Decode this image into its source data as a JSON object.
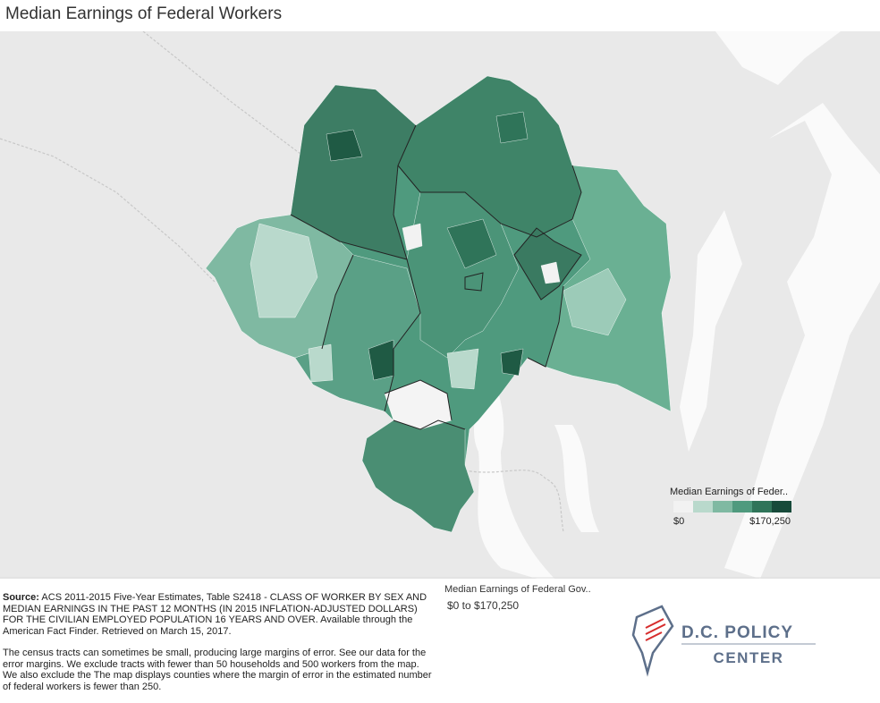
{
  "title": "Median Earnings of Federal Workers",
  "map_legend": {
    "title": "Median Earnings of Feder..",
    "min_label": "$0",
    "max_label": "$170,250",
    "colors": [
      "#f2f2f2",
      "#b9d9cc",
      "#7fb9a2",
      "#4f9a7e",
      "#2f7459",
      "#174a3a"
    ]
  },
  "filter": {
    "title": "Median Earnings of Federal Gov..",
    "range": "$0 to $170,250"
  },
  "source": {
    "label": "Source:",
    "text": "ACS 2011-2015 Five-Year Estimates, Table S2418 - CLASS OF WORKER BY SEX AND MEDIAN EARNINGS IN THE PAST 12 MONTHS (IN 2015 INFLATION-ADJUSTED DOLLARS) FOR THE CIVILIAN EMPLOYED POPULATION 16 YEARS AND OVER. Available through the American Fact Finder. Retrieved on March 15, 2017.",
    "note": "The census tracts can sometimes be small, producing large margins of error. See our data for the error margins. We exclude tracts with fewer than 50 households and 500 workers from the map. We also exclude the The map displays counties where the margin of error in the estimated number of federal workers is fewer than 250."
  },
  "logo": {
    "line1": "D.C. POLICY",
    "line2": "CENTER"
  }
}
